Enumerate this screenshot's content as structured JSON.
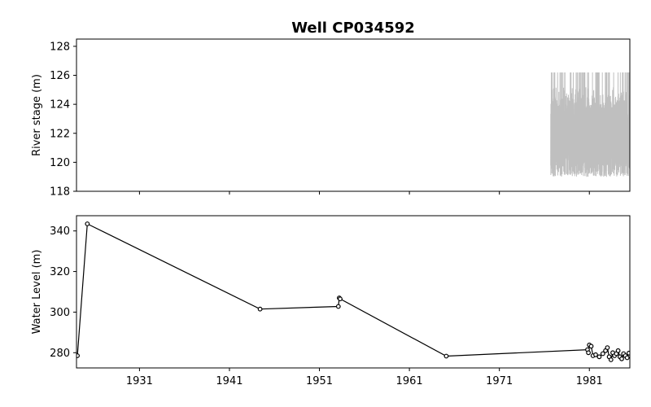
{
  "chart_data": [
    {
      "type": "line",
      "title": "Well CP034592",
      "xlabel": "",
      "ylabel": "River stage (m)",
      "xlim": [
        1924.0,
        1985.5
      ],
      "ylim": [
        118,
        128.5
      ],
      "yticks": [
        118,
        120,
        122,
        124,
        126,
        128
      ],
      "xticks": [
        1931,
        1941,
        1951,
        1961,
        1971,
        1981
      ],
      "x_ticklabels_visible": false,
      "series": [
        {
          "color": "#bfbfbf",
          "x_range": [
            1976.7,
            1985.5
          ],
          "y_range": [
            119.0,
            126.2
          ]
        }
      ]
    },
    {
      "type": "line",
      "xlabel": "",
      "ylabel": "Water Level (m)",
      "xlim": [
        1924.0,
        1985.5
      ],
      "ylim": [
        272.5,
        347.5
      ],
      "yticks": [
        280,
        300,
        320,
        340
      ],
      "xticks": [
        1931,
        1941,
        1951,
        1961,
        1971,
        1981
      ],
      "xticklabels": [
        "1931",
        "1941",
        "1951",
        "1961",
        "1971",
        "1981"
      ],
      "series": [
        {
          "color": "#000000",
          "marker": "circle",
          "x": [
            1924.1,
            1925.2,
            1944.4,
            1953.1,
            1953.2,
            1953.3,
            1965.1,
            1980.8,
            1980.9,
            1981.0,
            1981.2,
            1981.4,
            1981.7,
            1982.1,
            1982.5,
            1982.8,
            1983.0,
            1983.2,
            1983.4,
            1983.6,
            1983.8,
            1984.0,
            1984.2,
            1984.4,
            1984.6,
            1984.8,
            1985.0,
            1985.2,
            1985.4
          ],
          "y": [
            278.5,
            343.5,
            301.5,
            302.8,
            307.0,
            306.5,
            278.3,
            281.5,
            280.0,
            283.8,
            283.2,
            278.5,
            279.0,
            278.0,
            279.5,
            281.0,
            282.5,
            278.0,
            276.5,
            280.0,
            278.5,
            279.5,
            281.0,
            278.0,
            277.0,
            279.5,
            278.5,
            277.5,
            279.8
          ]
        }
      ]
    }
  ]
}
